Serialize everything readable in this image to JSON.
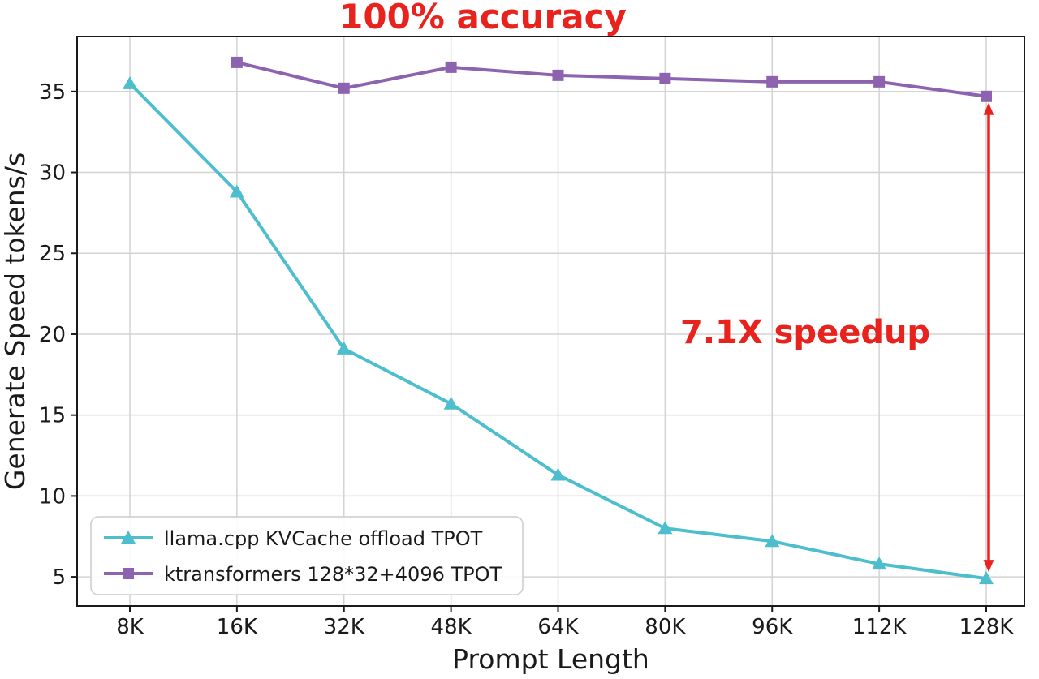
{
  "figure": {
    "title": "100% accuracy",
    "annotation": "7.1X speedup"
  },
  "colors": {
    "accent_red": "#e8231e",
    "llama_teal": "#4dbecd",
    "ktransformers_purple": "#8d63b0",
    "grid_gray": "#d3d3d3",
    "axis_black": "#1a1a1a",
    "legend_border": "#cccccc"
  },
  "chart_data": {
    "type": "line",
    "title": "100% accuracy",
    "xlabel": "Prompt Length",
    "ylabel": "Generate Speed tokens/s",
    "categories": [
      "8K",
      "16K",
      "32K",
      "48K",
      "64K",
      "80K",
      "96K",
      "112K",
      "128K"
    ],
    "series": [
      {
        "name": "llama.cpp KVCache offload TPOT",
        "color": "#4dbecd",
        "marker": "triangle",
        "values": [
          35.5,
          28.8,
          19.1,
          15.7,
          11.3,
          8.0,
          7.2,
          5.8,
          4.9
        ]
      },
      {
        "name": "ktransformers 128*32+4096 TPOT",
        "color": "#8d63b0",
        "marker": "square",
        "values": [
          null,
          36.8,
          35.2,
          36.5,
          36.0,
          35.8,
          35.6,
          35.6,
          34.7
        ]
      }
    ],
    "yticks": [
      5,
      10,
      15,
      20,
      25,
      30,
      35
    ],
    "ylim": [
      3.2,
      38.4
    ],
    "grid": true,
    "legend_position": "lower left",
    "annotations": [
      {
        "text": "7.1X speedup",
        "color": "#e8231e",
        "x_category": "128K",
        "value_top": 34.7,
        "value_bottom": 4.9
      }
    ]
  }
}
